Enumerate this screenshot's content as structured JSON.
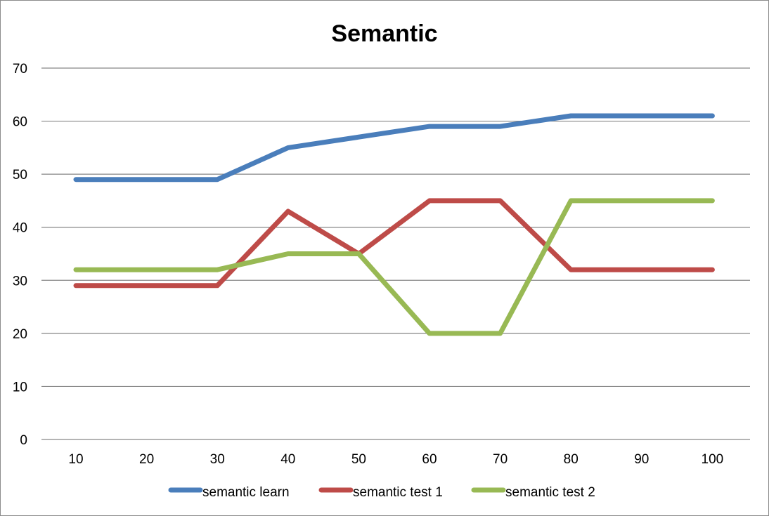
{
  "chart_data": {
    "type": "line",
    "title": "Semantic",
    "xlabel": "",
    "ylabel": "",
    "x": [
      10,
      20,
      30,
      40,
      50,
      60,
      70,
      80,
      90,
      100
    ],
    "ylim": [
      0,
      70
    ],
    "y_ticks": [
      0,
      10,
      20,
      30,
      40,
      50,
      60,
      70
    ],
    "grid": true,
    "legend_position": "bottom",
    "series": [
      {
        "name": "semantic learn",
        "color": "#4a7ebb",
        "values": [
          49,
          49,
          49,
          55,
          57,
          59,
          59,
          61,
          61,
          61
        ]
      },
      {
        "name": "semantic test 1",
        "color": "#be4b48",
        "values": [
          29,
          29,
          29,
          43,
          35,
          45,
          45,
          32,
          32,
          32
        ]
      },
      {
        "name": "semantic test 2",
        "color": "#98b954",
        "values": [
          32,
          32,
          32,
          35,
          35,
          20,
          20,
          45,
          45,
          45
        ]
      }
    ]
  }
}
